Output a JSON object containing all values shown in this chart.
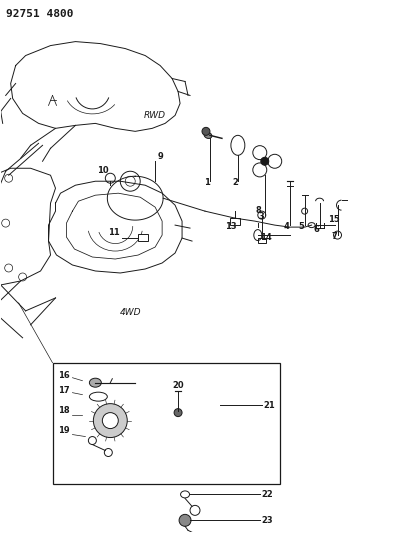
{
  "title": "92751 4800",
  "bg_color": "#ffffff",
  "line_color": "#1a1a1a",
  "label_color": "#1a1a1a",
  "rwd_label": "RWD",
  "fwd_label": "4WD",
  "fig_width": 4.0,
  "fig_height": 5.33,
  "dpi": 100
}
